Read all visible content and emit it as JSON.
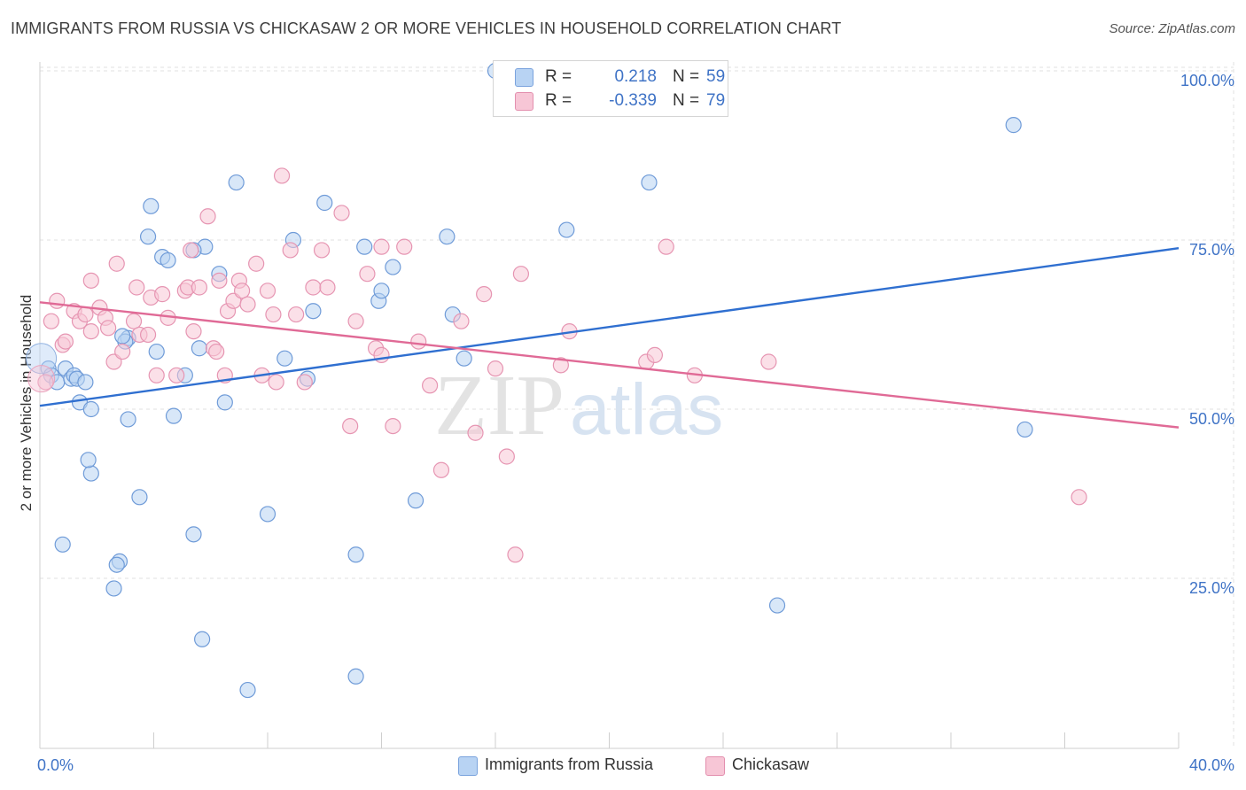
{
  "title": "IMMIGRANTS FROM RUSSIA VS CHICKASAW 2 OR MORE VEHICLES IN HOUSEHOLD CORRELATION CHART",
  "source": "Source: ZipAtlas.com",
  "watermark": {
    "zip": "ZIP",
    "atlas": "atlas"
  },
  "colors": {
    "blue": "#3f73c6",
    "blue_fill": "#b8d3f3",
    "blue_line": "#2f6fd0",
    "pink": "#e8709a",
    "pink_fill": "#f7c6d6",
    "pink_line": "#e06a96",
    "grid": "#e2e2e2",
    "tick_label": "#3f73c6"
  },
  "legend": {
    "r_label": "R =",
    "n_label": "N =",
    "rows": [
      {
        "r": "0.218",
        "n": "59"
      },
      {
        "r": "-0.339",
        "n": "79"
      }
    ]
  },
  "chart_data": {
    "type": "scatter",
    "title": "IMMIGRANTS FROM RUSSIA VS CHICKASAW 2 OR MORE VEHICLES IN HOUSEHOLD CORRELATION CHART",
    "xlabel": "",
    "ylabel": "2 or more Vehicles in Household",
    "xlim": [
      0,
      40
    ],
    "ylim": [
      0,
      105
    ],
    "x_tick_labels": [
      "0.0%",
      "40.0%"
    ],
    "y_ticks": [
      25,
      50,
      75,
      100
    ],
    "y_tick_labels": [
      "25.0%",
      "50.0%",
      "75.0%",
      "100.0%"
    ],
    "grid": true,
    "legend_position": "top-center and bottom",
    "series": [
      {
        "name": "Immigrants from Russia",
        "r": 0.218,
        "n": 59,
        "trend": {
          "x": [
            0,
            40
          ],
          "y": [
            50.5,
            73.8
          ]
        },
        "points": [
          [
            0.3,
            56
          ],
          [
            0.4,
            55
          ],
          [
            0.6,
            54
          ],
          [
            0.9,
            56
          ],
          [
            1.1,
            54.5
          ],
          [
            1.2,
            55
          ],
          [
            1.3,
            54.5
          ],
          [
            0.8,
            30
          ],
          [
            1.6,
            54
          ],
          [
            1.4,
            51
          ],
          [
            1.8,
            50
          ],
          [
            1.8,
            40.5
          ],
          [
            1.7,
            42.5
          ],
          [
            2.8,
            27.5
          ],
          [
            2.6,
            23.5
          ],
          [
            2.7,
            27
          ],
          [
            3.1,
            48.5
          ],
          [
            3.5,
            37
          ],
          [
            3.9,
            80
          ],
          [
            3.8,
            75.5
          ],
          [
            4.3,
            72.5
          ],
          [
            4.5,
            72
          ],
          [
            4.7,
            49
          ],
          [
            5.1,
            55
          ],
          [
            5.6,
            59
          ],
          [
            5.4,
            31.5
          ],
          [
            5.7,
            16
          ],
          [
            5.8,
            74
          ],
          [
            6.3,
            70
          ],
          [
            6.5,
            51
          ],
          [
            6.9,
            83.5
          ],
          [
            7.3,
            8.5
          ],
          [
            8.0,
            34.5
          ],
          [
            8.6,
            57.5
          ],
          [
            8.9,
            75
          ],
          [
            9.4,
            54.5
          ],
          [
            9.6,
            64.5
          ],
          [
            10.0,
            80.5
          ],
          [
            11.1,
            28.5
          ],
          [
            11.1,
            10.5
          ],
          [
            11.4,
            74
          ],
          [
            11.9,
            66
          ],
          [
            12.0,
            67.5
          ],
          [
            12.4,
            71
          ],
          [
            13.2,
            36.5
          ],
          [
            14.3,
            75.5
          ],
          [
            14.5,
            64
          ],
          [
            14.9,
            57.5
          ],
          [
            16.0,
            100
          ],
          [
            18.5,
            76.5
          ],
          [
            21.4,
            83.5
          ],
          [
            25.9,
            21
          ],
          [
            34.2,
            92
          ],
          [
            34.6,
            47
          ],
          [
            3.1,
            60.5
          ],
          [
            4.1,
            58.5
          ],
          [
            3.0,
            60.0
          ],
          [
            2.9,
            60.8
          ],
          [
            5.4,
            73.5
          ]
        ]
      },
      {
        "name": "Chickasaw",
        "r": -0.339,
        "n": 79,
        "trend": {
          "x": [
            0,
            40
          ],
          "y": [
            65.8,
            47.3
          ]
        },
        "points": [
          [
            0.2,
            54
          ],
          [
            0.4,
            63
          ],
          [
            0.6,
            66
          ],
          [
            0.8,
            59.5
          ],
          [
            0.9,
            60
          ],
          [
            1.2,
            64.5
          ],
          [
            1.4,
            63
          ],
          [
            1.6,
            64
          ],
          [
            1.8,
            69
          ],
          [
            1.8,
            61.5
          ],
          [
            2.1,
            65
          ],
          [
            2.3,
            63.5
          ],
          [
            2.4,
            62
          ],
          [
            2.6,
            57
          ],
          [
            2.7,
            71.5
          ],
          [
            2.9,
            58.5
          ],
          [
            3.3,
            63
          ],
          [
            3.4,
            68
          ],
          [
            3.5,
            61
          ],
          [
            3.9,
            66.5
          ],
          [
            4.1,
            55
          ],
          [
            4.3,
            67
          ],
          [
            4.5,
            63.5
          ],
          [
            4.8,
            55
          ],
          [
            5.1,
            67.5
          ],
          [
            5.2,
            68
          ],
          [
            5.3,
            73.5
          ],
          [
            5.4,
            61.5
          ],
          [
            5.6,
            68
          ],
          [
            5.9,
            78.5
          ],
          [
            6.1,
            59
          ],
          [
            6.2,
            58.5
          ],
          [
            6.5,
            55
          ],
          [
            6.6,
            64.5
          ],
          [
            6.8,
            66
          ],
          [
            7.0,
            69
          ],
          [
            7.1,
            67.5
          ],
          [
            7.3,
            65.5
          ],
          [
            7.6,
            71.5
          ],
          [
            7.8,
            55
          ],
          [
            8.0,
            67.5
          ],
          [
            8.2,
            64
          ],
          [
            8.3,
            54
          ],
          [
            8.5,
            84.5
          ],
          [
            8.8,
            73.5
          ],
          [
            9.0,
            64
          ],
          [
            9.3,
            54
          ],
          [
            9.6,
            68
          ],
          [
            9.9,
            73.5
          ],
          [
            10.1,
            68
          ],
          [
            10.6,
            79
          ],
          [
            10.9,
            47.5
          ],
          [
            11.1,
            63
          ],
          [
            11.5,
            70
          ],
          [
            11.8,
            59
          ],
          [
            12.0,
            58
          ],
          [
            12.4,
            47.5
          ],
          [
            12.8,
            74
          ],
          [
            13.3,
            60
          ],
          [
            13.7,
            53.5
          ],
          [
            14.1,
            41
          ],
          [
            14.8,
            63
          ],
          [
            15.3,
            46.5
          ],
          [
            15.6,
            67
          ],
          [
            16.0,
            56
          ],
          [
            16.4,
            43
          ],
          [
            16.7,
            28.5
          ],
          [
            16.9,
            70
          ],
          [
            18.3,
            56.5
          ],
          [
            18.6,
            61.5
          ],
          [
            21.3,
            57
          ],
          [
            21.6,
            58
          ],
          [
            22.0,
            74
          ],
          [
            23.0,
            55
          ],
          [
            25.6,
            57
          ],
          [
            36.5,
            37
          ],
          [
            6.3,
            69
          ],
          [
            12.0,
            74
          ],
          [
            3.8,
            61
          ]
        ]
      }
    ]
  },
  "bottom_legend": [
    "Immigrants from Russia",
    "Chickasaw"
  ]
}
